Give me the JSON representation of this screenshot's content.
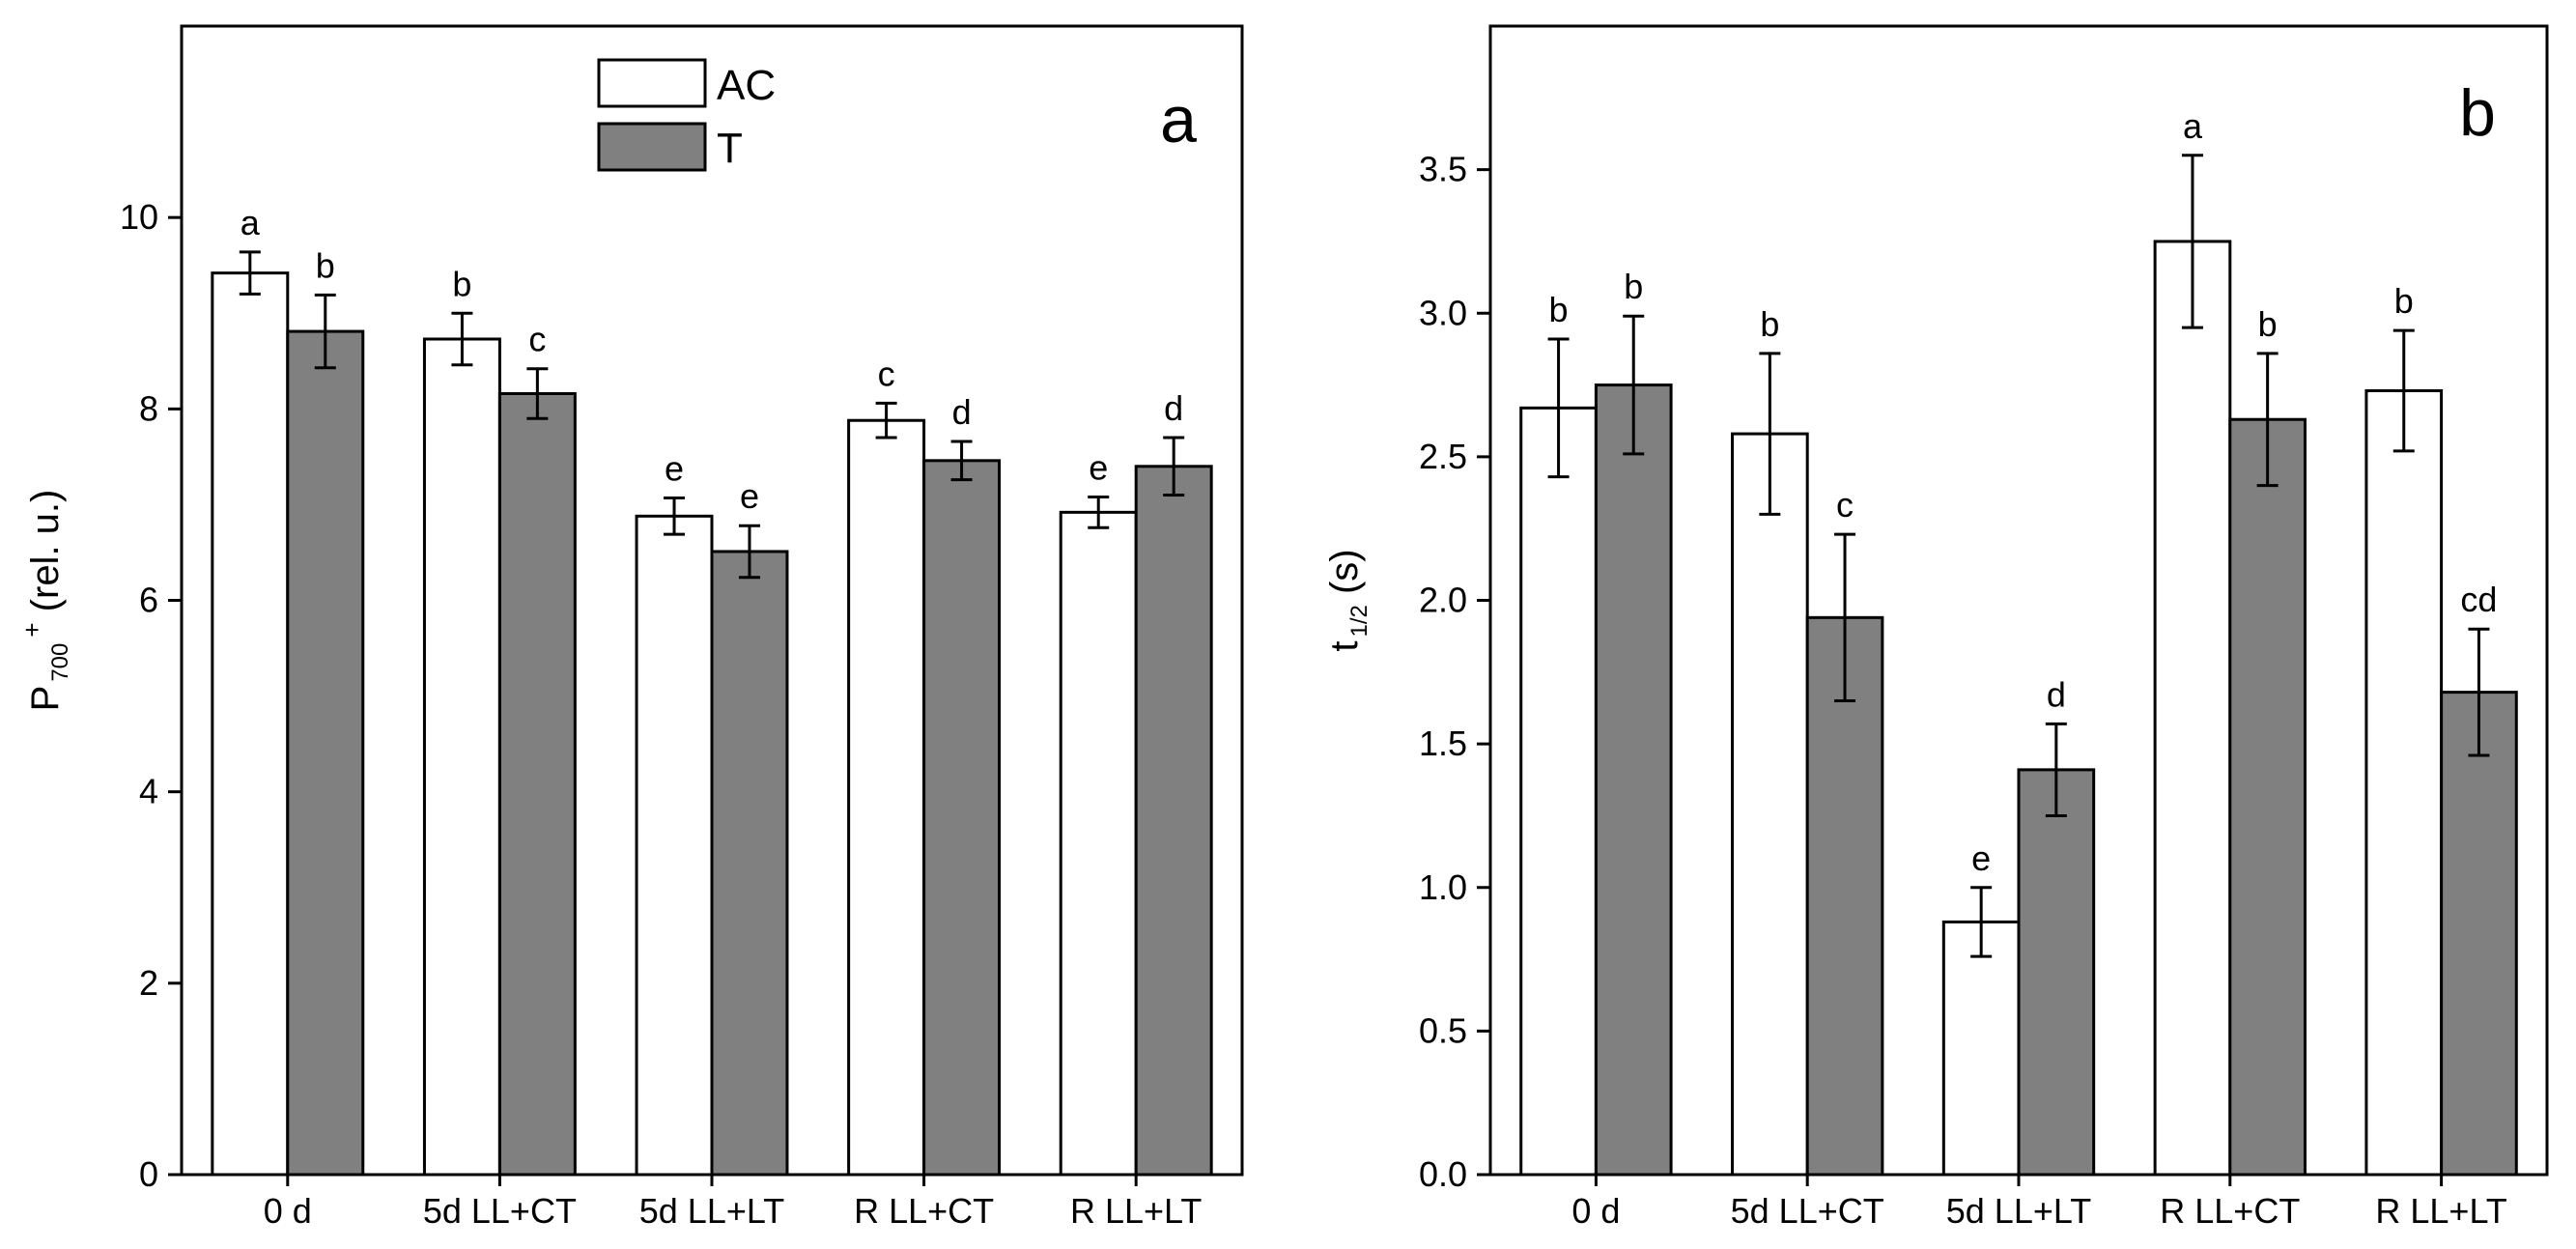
{
  "chart_data": [
    {
      "type": "bar",
      "panel_label": "a",
      "categories": [
        "0 d",
        "5d LL+CT",
        "5d LL+LT",
        "R LL+CT",
        "R LL+LT"
      ],
      "ylabel_main": "P",
      "ylabel_sub": "700",
      "ylabel_sup": "+",
      "ylabel_rest": " (rel. u.)",
      "xlabel": "",
      "ylim": [
        0,
        12
      ],
      "yticks": [
        0,
        2,
        4,
        6,
        8,
        10
      ],
      "ytick_labels": [
        "0",
        "2",
        "4",
        "6",
        "8",
        "10"
      ],
      "legend": {
        "position": "top-center",
        "entries": [
          "AC",
          "T"
        ]
      },
      "series": [
        {
          "name": "AC",
          "color": "#ffffff",
          "values": [
            9.42,
            8.73,
            6.88,
            7.88,
            6.92
          ],
          "errors": [
            0.22,
            0.27,
            0.19,
            0.18,
            0.16
          ],
          "labels": [
            "a",
            "b",
            "e",
            "c",
            "e"
          ]
        },
        {
          "name": "T",
          "color": "#808080",
          "values": [
            8.81,
            8.16,
            6.51,
            7.46,
            7.4
          ],
          "errors": [
            0.38,
            0.26,
            0.27,
            0.2,
            0.3
          ],
          "labels": [
            "b",
            "c",
            "e",
            "d",
            "d"
          ]
        }
      ]
    },
    {
      "type": "bar",
      "panel_label": "b",
      "categories": [
        "0 d",
        "5d LL+CT",
        "5d LL+LT",
        "R LL+CT",
        "R LL+LT"
      ],
      "ylabel_main": "t",
      "ylabel_sub": "1/2",
      "ylabel_sup": "",
      "ylabel_rest": " (s)",
      "xlabel": "",
      "ylim": [
        0,
        4.0
      ],
      "yticks": [
        0,
        0.5,
        1,
        1.5,
        2,
        2.5,
        3,
        3.5
      ],
      "ytick_labels": [
        "0.0",
        "0.5",
        "1.0",
        "1.5",
        "2.0",
        "2.5",
        "3.0",
        "3.5"
      ],
      "series": [
        {
          "name": "AC",
          "color": "#ffffff",
          "values": [
            2.67,
            2.58,
            0.88,
            3.25,
            2.73
          ],
          "errors": [
            0.24,
            0.28,
            0.12,
            0.3,
            0.21
          ],
          "labels": [
            "b",
            "b",
            "e",
            "a",
            "b"
          ]
        },
        {
          "name": "T",
          "color": "#808080",
          "values": [
            2.75,
            1.94,
            1.41,
            2.63,
            1.68
          ],
          "errors": [
            0.24,
            0.29,
            0.16,
            0.23,
            0.22
          ],
          "labels": [
            "b",
            "c",
            "d",
            "b",
            "cd"
          ]
        }
      ]
    }
  ]
}
